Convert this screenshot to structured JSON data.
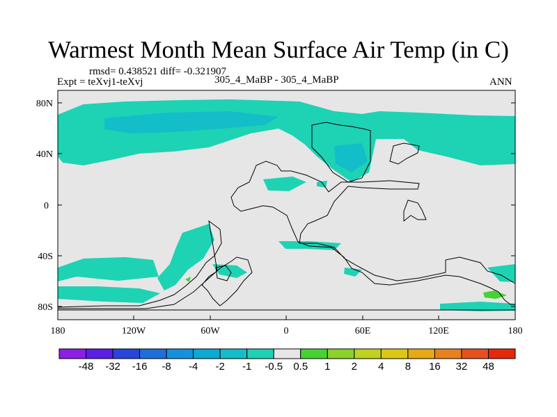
{
  "title": "Warmest Month Mean Surface Air Temp (in C)",
  "stats": "rmsd= 0.438521 diff= -0.321907",
  "experiment": "Expt = teXvj1-teXvj",
  "comparison": "305_4_MaBP - 305_4_MaBP",
  "period": "ANN",
  "map": {
    "projection": "cylindrical-equidistant",
    "lon_range": [
      -180,
      180
    ],
    "lat_range": [
      -90,
      90
    ],
    "background_color": "#e6e6e6",
    "lat_ticks": [
      {
        "value": 80,
        "label": "80N"
      },
      {
        "value": 40,
        "label": "40N"
      },
      {
        "value": 0,
        "label": "0"
      },
      {
        "value": -40,
        "label": "40S"
      },
      {
        "value": -80,
        "label": "80S"
      }
    ],
    "lon_ticks": [
      {
        "value": -180,
        "label": "180"
      },
      {
        "value": -120,
        "label": "120W"
      },
      {
        "value": -60,
        "label": "60W"
      },
      {
        "value": 0,
        "label": "0"
      },
      {
        "value": 60,
        "label": "60E"
      },
      {
        "value": 120,
        "label": "120E"
      },
      {
        "value": 180,
        "label": "180"
      }
    ]
  },
  "colorbar": {
    "colors": [
      "#8c1ee6",
      "#5a1ee6",
      "#2846dc",
      "#1e6edc",
      "#1491dc",
      "#0aaad2",
      "#14bec8",
      "#1ed2b4",
      "#e6e6e6",
      "#46d232",
      "#8cd228",
      "#bed21e",
      "#dcc814",
      "#e6aa14",
      "#e6821e",
      "#e6501e",
      "#e6280a"
    ],
    "labels": [
      "-48",
      "-32",
      "-16",
      "-8",
      "-4",
      "-2",
      "-1",
      "-0.5",
      "0.5",
      "1",
      "2",
      "4",
      "8",
      "16",
      "32",
      "48"
    ]
  },
  "palette": {
    "teal": "#1ed2b4",
    "cyan": "#14bec8",
    "green": "#46d232"
  }
}
